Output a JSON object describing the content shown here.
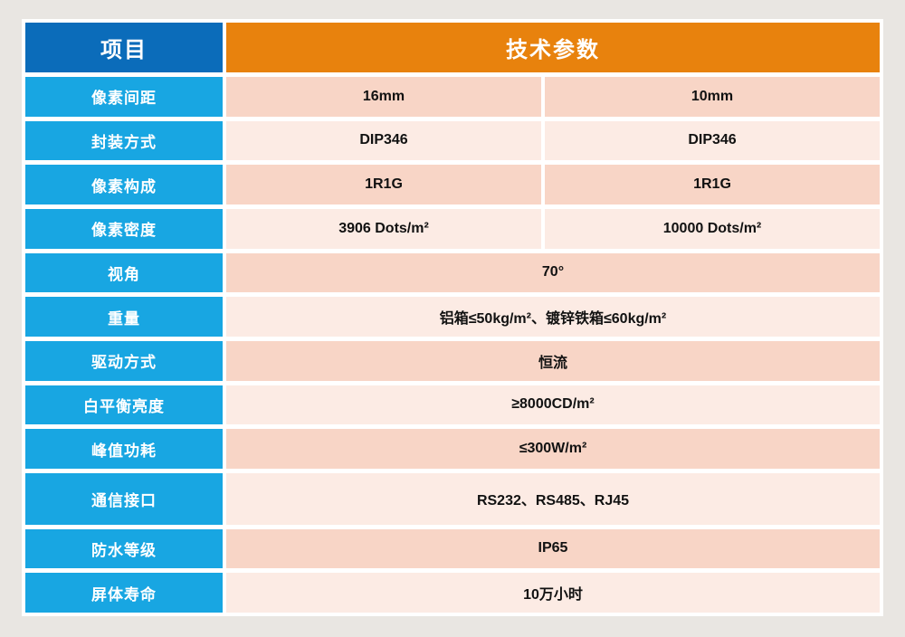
{
  "header": {
    "item_col": "项目",
    "params_col": "技术参数"
  },
  "rows": [
    {
      "label": "像素间距",
      "values": [
        "16mm",
        "10mm"
      ]
    },
    {
      "label": "封装方式",
      "values": [
        "DIP346",
        "DIP346"
      ]
    },
    {
      "label": "像素构成",
      "values": [
        "1R1G",
        "1R1G"
      ]
    },
    {
      "label": "像素密度",
      "values": [
        "3906 Dots/m²",
        "10000 Dots/m²"
      ]
    },
    {
      "label": "视角",
      "value": "70°"
    },
    {
      "label": "重量",
      "value": "铝箱≤50kg/m²、镀锌铁箱≤60kg/m²"
    },
    {
      "label": "驱动方式",
      "value": "恒流"
    },
    {
      "label": "白平衡亮度",
      "value": "≥8000CD/m²"
    },
    {
      "label": "峰值功耗",
      "value": "≤300W/m²"
    },
    {
      "label": "通信接口",
      "value": "RS232、RS485、RJ45"
    },
    {
      "label": "防水等级",
      "value": "IP65"
    },
    {
      "label": "屏体寿命",
      "value": "10万小时"
    }
  ],
  "colors": {
    "bg_gray": "#e9e6e2",
    "header_blue": "#0b6cba",
    "label_cyan": "#18a6e2",
    "header_orange": "#e8820d",
    "row_pink_dark": "#f8d5c6",
    "row_pink_light": "#fcebe4",
    "value_text": "#111111"
  }
}
